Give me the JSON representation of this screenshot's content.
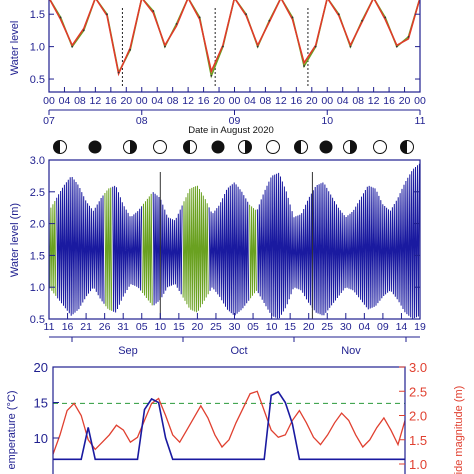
{
  "colors": {
    "axis_blue": "#1f1f8f",
    "series_navy": "#1a1aa0",
    "series_green": "#6aa121",
    "series_red": "#e03a2a",
    "tide_red": "#e04030",
    "dashed_green": "#2a9a3a",
    "moon_dark": "#111111"
  },
  "chart_data": [
    {
      "type": "line",
      "panel": "top",
      "ylabel": "Water level",
      "ytick_labels": [
        "0.5",
        "1.0",
        "1.5"
      ],
      "ylim": [
        0.3,
        1.75
      ],
      "xlabel": "Date in August 2020",
      "hour_tick_labels": [
        "00",
        "04",
        "08",
        "12",
        "16",
        "20",
        "00",
        "04",
        "08",
        "12",
        "16",
        "20",
        "00",
        "04",
        "08",
        "12",
        "16",
        "20",
        "00",
        "04",
        "08",
        "12",
        "16",
        "20",
        "00"
      ],
      "date_tick_labels": [
        "07",
        "08",
        "09",
        "10",
        "11"
      ],
      "xlim_hours": [
        0,
        96
      ],
      "series": [
        {
          "color_key": "series_green",
          "x_hours": [
            0,
            3,
            6,
            9,
            12,
            15,
            18,
            21,
            24,
            27,
            30,
            33,
            36,
            39,
            42,
            45,
            48,
            51,
            54,
            57,
            60,
            63,
            66,
            69,
            72,
            75,
            78,
            81,
            84,
            87,
            90,
            93,
            96
          ],
          "values": [
            1.75,
            1.45,
            1.0,
            1.25,
            1.75,
            1.5,
            0.6,
            0.95,
            1.75,
            1.55,
            1.0,
            1.35,
            1.75,
            1.45,
            0.55,
            1.0,
            1.75,
            1.5,
            1.0,
            1.4,
            1.75,
            1.45,
            0.7,
            1.0,
            1.75,
            1.5,
            1.0,
            1.4,
            1.75,
            1.45,
            1.0,
            1.15,
            1.75
          ]
        },
        {
          "color_key": "series_red",
          "x_hours": [
            0,
            3,
            6,
            9,
            12,
            15,
            18,
            21,
            24,
            27,
            30,
            33,
            36,
            39,
            42,
            45,
            48,
            51,
            54,
            57,
            60,
            63,
            66,
            69,
            72,
            75,
            78,
            81,
            84,
            87,
            90,
            93,
            96
          ],
          "values": [
            1.75,
            1.42,
            1.02,
            1.28,
            1.75,
            1.48,
            0.58,
            0.98,
            1.75,
            1.52,
            1.02,
            1.32,
            1.75,
            1.42,
            0.62,
            1.02,
            1.75,
            1.48,
            1.02,
            1.38,
            1.75,
            1.42,
            0.75,
            1.02,
            1.75,
            1.48,
            1.02,
            1.38,
            1.75,
            1.42,
            1.02,
            1.12,
            1.75
          ]
        }
      ]
    },
    {
      "type": "line",
      "panel": "middle",
      "ylabel": "Water level (m)",
      "ytick_labels": [
        "0.5",
        "1.0",
        "1.5",
        "2.0",
        "2.5",
        "3.0"
      ],
      "ylim": [
        0.5,
        3.0
      ],
      "day_tick_labels": [
        "11",
        "16",
        "21",
        "26",
        "31",
        "05",
        "10",
        "15",
        "20",
        "25",
        "30",
        "05",
        "10",
        "15",
        "20",
        "25",
        "30",
        "04",
        "09",
        "14",
        "19"
      ],
      "month_labels": [
        "Sep",
        "Oct",
        "Nov"
      ],
      "xlim_days": [
        0,
        100
      ],
      "envelope": {
        "days": [
          0,
          2,
          4,
          6,
          8,
          10,
          12,
          14,
          16,
          18,
          20,
          22,
          24,
          26,
          28,
          30,
          32,
          34,
          36,
          38,
          40,
          42,
          44,
          46,
          48,
          50,
          52,
          54,
          56,
          58,
          60,
          62,
          64,
          66,
          68,
          70,
          72,
          74,
          76,
          78,
          80,
          82,
          84,
          86,
          88,
          90,
          92,
          94,
          96,
          98,
          100
        ],
        "upper": [
          2.2,
          2.4,
          2.6,
          2.75,
          2.6,
          2.35,
          2.2,
          2.4,
          2.55,
          2.6,
          2.3,
          2.1,
          2.2,
          2.35,
          2.5,
          2.4,
          2.1,
          2.05,
          2.3,
          2.55,
          2.6,
          2.4,
          2.15,
          2.3,
          2.55,
          2.65,
          2.5,
          2.3,
          2.2,
          2.5,
          2.75,
          2.8,
          2.5,
          2.1,
          2.15,
          2.4,
          2.6,
          2.65,
          2.45,
          2.25,
          2.1,
          2.2,
          2.4,
          2.6,
          2.55,
          2.3,
          2.2,
          2.4,
          2.65,
          2.85,
          2.95
        ],
        "lower": [
          1.0,
          0.85,
          0.7,
          0.55,
          0.65,
          0.85,
          1.0,
          0.8,
          0.65,
          0.6,
          0.85,
          1.05,
          1.0,
          0.85,
          0.7,
          0.8,
          1.0,
          1.05,
          0.85,
          0.65,
          0.6,
          0.8,
          1.0,
          0.85,
          0.65,
          0.55,
          0.65,
          0.8,
          0.95,
          0.75,
          0.55,
          0.5,
          0.7,
          1.0,
          0.95,
          0.75,
          0.6,
          0.55,
          0.7,
          0.85,
          1.0,
          0.95,
          0.8,
          0.65,
          0.7,
          0.85,
          0.95,
          0.8,
          0.6,
          0.5,
          0.55
        ],
        "green_ranges": [
          [
            -1,
            2
          ],
          [
            15,
            17
          ],
          [
            25,
            28
          ],
          [
            36,
            43
          ],
          [
            54,
            56
          ]
        ]
      },
      "moon_phases": [
        "last-quarter",
        "new",
        "first-quarter",
        "full",
        "last-quarter",
        "new",
        "first-quarter",
        "full",
        "last-quarter",
        "new",
        "first-quarter",
        "full",
        "last-quarter",
        "new",
        "first-quarter",
        "full",
        "last-quarter",
        "new",
        "first-quarter",
        "full",
        "last-quarter",
        "new"
      ]
    },
    {
      "type": "line",
      "panel": "bottom",
      "ylabel_left": "emperature (°C)",
      "ylabel_right": "ide magnitude (m)",
      "ytick_labels_left": [
        "10",
        "15",
        "20"
      ],
      "ytick_labels_right": [
        "1.0",
        "1.5",
        "2.0",
        "2.5",
        "3.0"
      ],
      "ylim_left": [
        7,
        20
      ],
      "ylim_right": [
        0.95,
        3.0
      ],
      "dashed_line_right": 2.25,
      "tide_magnitude": {
        "days": [
          0,
          2,
          4,
          6,
          8,
          10,
          12,
          14,
          16,
          18,
          20,
          22,
          24,
          26,
          28,
          30,
          32,
          34,
          36,
          38,
          40,
          42,
          44,
          46,
          48,
          50,
          52,
          54,
          56,
          58,
          60,
          62,
          64,
          66,
          68,
          70,
          72,
          74,
          76,
          78,
          80,
          82,
          84,
          86,
          88,
          90,
          92,
          94,
          96,
          98,
          100
        ],
        "values": [
          1.2,
          1.6,
          2.1,
          2.25,
          2.0,
          1.5,
          1.3,
          1.45,
          1.6,
          1.8,
          1.7,
          1.45,
          1.55,
          1.9,
          2.25,
          2.35,
          2.0,
          1.6,
          1.45,
          1.7,
          1.95,
          2.2,
          1.95,
          1.6,
          1.35,
          1.5,
          1.85,
          2.15,
          2.45,
          2.5,
          2.1,
          1.7,
          1.55,
          1.6,
          1.9,
          2.1,
          1.85,
          1.55,
          1.4,
          1.6,
          1.85,
          2.05,
          1.9,
          1.6,
          1.35,
          1.5,
          1.75,
          1.95,
          1.7,
          1.4,
          1.9
        ]
      },
      "temperature": {
        "days": [
          0,
          2,
          4,
          6,
          8,
          10,
          12,
          14,
          16,
          18,
          20,
          22,
          24,
          26,
          28,
          30,
          32,
          34,
          36,
          38,
          40,
          42,
          44,
          46,
          48,
          50,
          52,
          54,
          56,
          58,
          60,
          62,
          64,
          66,
          68,
          70,
          72,
          74,
          76,
          78,
          80,
          82,
          84,
          86,
          88,
          90,
          92,
          94,
          96,
          98,
          100
        ],
        "values": [
          7,
          7,
          7,
          7,
          7,
          11.5,
          7,
          7,
          7,
          7,
          7,
          7,
          7,
          14,
          15.5,
          15,
          10,
          7,
          7,
          7,
          7,
          7,
          7,
          7,
          7,
          7,
          7,
          7,
          7,
          7,
          7,
          16,
          16.5,
          15,
          12,
          7,
          7,
          7,
          7,
          7,
          7,
          7,
          7,
          7,
          7,
          7,
          7,
          7,
          7,
          7,
          7
        ]
      }
    }
  ]
}
